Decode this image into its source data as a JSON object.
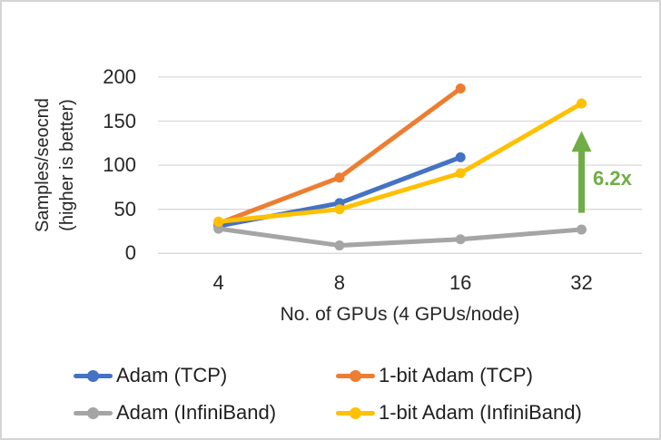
{
  "figure": {
    "background": "#FFFFFF",
    "border_color": "#D4D4D4",
    "text_color": "#262626"
  },
  "chart_data": {
    "type": "line",
    "title": "",
    "xlabel": "No. of GPUs (4 GPUs/node)",
    "ylabel_line1": "Samples/seocnd",
    "ylabel_line2": "(higher is better)",
    "categories": [
      "4",
      "8",
      "16",
      "32"
    ],
    "y_ticks": [
      "0",
      "50",
      "100",
      "150",
      "200"
    ],
    "ylim": [
      0,
      200
    ],
    "grid": true,
    "gridline_color": "#D9D9D9",
    "legend_position": "bottom",
    "series": [
      {
        "name": "Adam (TCP)",
        "color": "#4472C4",
        "values": [
          31,
          57,
          109,
          null
        ]
      },
      {
        "name": "1-bit Adam (TCP)",
        "color": "#ED7D31",
        "values": [
          34,
          86,
          187,
          null
        ]
      },
      {
        "name": "Adam (InfiniBand)",
        "color": "#A5A5A5",
        "values": [
          28,
          9,
          16,
          27
        ]
      },
      {
        "name": "1-bit Adam (InfiniBand)",
        "color": "#FFC000",
        "values": [
          36,
          50,
          91,
          170
        ]
      }
    ],
    "annotation": {
      "text": "6.2x",
      "color": "#70AD47",
      "x_index": 3,
      "arrow_from_value": 46,
      "arrow_to_value": 139
    }
  }
}
